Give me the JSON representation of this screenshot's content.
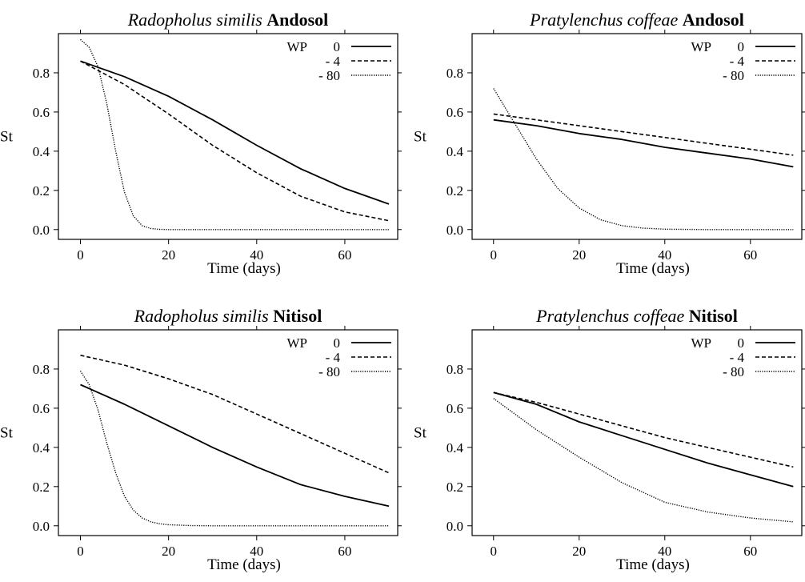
{
  "chart_data": [
    {
      "type": "line",
      "title_species": "Radopholus similis",
      "title_soil": "Andosol",
      "xlabel": "Time (days)",
      "ylabel": "St",
      "xlim": [
        -5,
        72
      ],
      "ylim": [
        -0.05,
        1.0
      ],
      "xticks": [
        "0",
        "20",
        "40",
        "60"
      ],
      "yticks": [
        "0.0",
        "0.2",
        "0.4",
        "0.6",
        "0.8"
      ],
      "legend_title": "WP",
      "legend_position": "top-right",
      "series": [
        {
          "name": "0",
          "style": "solid",
          "x": [
            0,
            10,
            20,
            30,
            40,
            50,
            60,
            70
          ],
          "y": [
            0.86,
            0.78,
            0.68,
            0.56,
            0.43,
            0.31,
            0.21,
            0.13
          ]
        },
        {
          "name": "- 4",
          "style": "dashed",
          "x": [
            0,
            10,
            20,
            30,
            40,
            50,
            60,
            70
          ],
          "y": [
            0.86,
            0.74,
            0.59,
            0.43,
            0.29,
            0.17,
            0.09,
            0.045
          ]
        },
        {
          "name": "- 80",
          "style": "dotted",
          "x": [
            0,
            2,
            4,
            6,
            8,
            10,
            12,
            14,
            16,
            18,
            20,
            30,
            40,
            50,
            60,
            70
          ],
          "y": [
            0.97,
            0.93,
            0.83,
            0.64,
            0.4,
            0.19,
            0.07,
            0.02,
            0.005,
            0.001,
            0,
            0,
            0,
            0,
            0,
            0
          ]
        }
      ]
    },
    {
      "type": "line",
      "title_species": "Pratylenchus coffeae",
      "title_soil": "Andosol",
      "xlabel": "Time (days)",
      "ylabel": "St",
      "xlim": [
        -5,
        72
      ],
      "ylim": [
        -0.05,
        1.0
      ],
      "xticks": [
        "0",
        "20",
        "40",
        "60"
      ],
      "yticks": [
        "0.0",
        "0.2",
        "0.4",
        "0.6",
        "0.8"
      ],
      "legend_title": "WP",
      "legend_position": "top-right",
      "series": [
        {
          "name": "0",
          "style": "solid",
          "x": [
            0,
            10,
            20,
            30,
            40,
            50,
            60,
            70
          ],
          "y": [
            0.56,
            0.53,
            0.49,
            0.46,
            0.42,
            0.39,
            0.36,
            0.32
          ]
        },
        {
          "name": "- 4",
          "style": "dashed",
          "x": [
            0,
            10,
            20,
            30,
            40,
            50,
            60,
            70
          ],
          "y": [
            0.59,
            0.56,
            0.53,
            0.5,
            0.47,
            0.44,
            0.41,
            0.38
          ]
        },
        {
          "name": "- 80",
          "style": "dotted",
          "x": [
            0,
            5,
            10,
            15,
            20,
            25,
            30,
            35,
            40,
            50,
            60,
            70
          ],
          "y": [
            0.72,
            0.54,
            0.36,
            0.21,
            0.11,
            0.05,
            0.02,
            0.007,
            0.002,
            0,
            0,
            0
          ]
        }
      ]
    },
    {
      "type": "line",
      "title_species": "Radopholus similis",
      "title_soil": "Nitisol",
      "xlabel": "Time (days)",
      "ylabel": "St",
      "xlim": [
        -5,
        72
      ],
      "ylim": [
        -0.05,
        1.0
      ],
      "xticks": [
        "0",
        "20",
        "40",
        "60"
      ],
      "yticks": [
        "0.0",
        "0.2",
        "0.4",
        "0.6",
        "0.8"
      ],
      "legend_title": "WP",
      "legend_position": "top-right",
      "series": [
        {
          "name": "0",
          "style": "solid",
          "x": [
            0,
            10,
            20,
            30,
            40,
            50,
            60,
            70
          ],
          "y": [
            0.72,
            0.62,
            0.51,
            0.4,
            0.3,
            0.21,
            0.15,
            0.1
          ]
        },
        {
          "name": "- 4",
          "style": "dashed",
          "x": [
            0,
            10,
            20,
            30,
            40,
            50,
            60,
            70
          ],
          "y": [
            0.87,
            0.82,
            0.75,
            0.67,
            0.57,
            0.47,
            0.37,
            0.27
          ]
        },
        {
          "name": "- 80",
          "style": "dotted",
          "x": [
            0,
            2,
            4,
            6,
            8,
            10,
            12,
            14,
            16,
            18,
            20,
            25,
            30,
            40,
            50,
            60,
            70
          ],
          "y": [
            0.79,
            0.72,
            0.59,
            0.42,
            0.27,
            0.15,
            0.08,
            0.04,
            0.02,
            0.01,
            0.005,
            0.001,
            0,
            0,
            0,
            0,
            0
          ]
        }
      ]
    },
    {
      "type": "line",
      "title_species": "Pratylenchus coffeae",
      "title_soil": "Nitisol",
      "xlabel": "Time (days)",
      "ylabel": "St",
      "xlim": [
        -5,
        72
      ],
      "ylim": [
        -0.05,
        1.0
      ],
      "xticks": [
        "0",
        "20",
        "40",
        "60"
      ],
      "yticks": [
        "0.0",
        "0.2",
        "0.4",
        "0.6",
        "0.8"
      ],
      "legend_title": "WP",
      "legend_position": "top-right",
      "series": [
        {
          "name": "0",
          "style": "solid",
          "x": [
            0,
            10,
            20,
            30,
            40,
            50,
            60,
            70
          ],
          "y": [
            0.68,
            0.62,
            0.53,
            0.46,
            0.39,
            0.32,
            0.26,
            0.2
          ]
        },
        {
          "name": "- 4",
          "style": "dashed",
          "x": [
            0,
            10,
            20,
            30,
            40,
            50,
            60,
            70
          ],
          "y": [
            0.68,
            0.63,
            0.57,
            0.51,
            0.45,
            0.4,
            0.35,
            0.3
          ]
        },
        {
          "name": "- 80",
          "style": "dotted",
          "x": [
            0,
            10,
            20,
            30,
            40,
            50,
            60,
            70
          ],
          "y": [
            0.65,
            0.49,
            0.35,
            0.22,
            0.12,
            0.07,
            0.04,
            0.02
          ]
        }
      ]
    }
  ]
}
